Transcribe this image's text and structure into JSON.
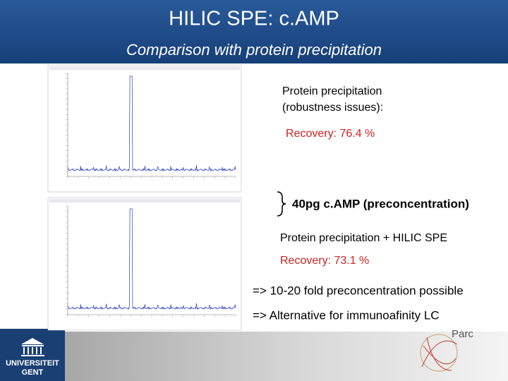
{
  "header": {
    "title": "HILIC SPE: c.AMP",
    "subtitle": "Comparison with protein precipitation"
  },
  "panels": [
    {
      "label_lines": [
        "Protein precipitation",
        "(robustness issues):"
      ],
      "recovery": "Recovery: 76.4 %"
    },
    {
      "label_lines": [
        "Protein precipitation + HILIC SPE"
      ],
      "recovery": "Recovery: 73.1 %"
    }
  ],
  "brace_note": "40pg c.AMP (preconcentration)",
  "conclusions": [
    "=> 10-20 fold preconcentration possible",
    "=> Alternative for immunoafinity LC"
  ],
  "footer": {
    "university": [
      "UNIVERSITEIT",
      "GENT"
    ],
    "lab": "Parc"
  }
}
